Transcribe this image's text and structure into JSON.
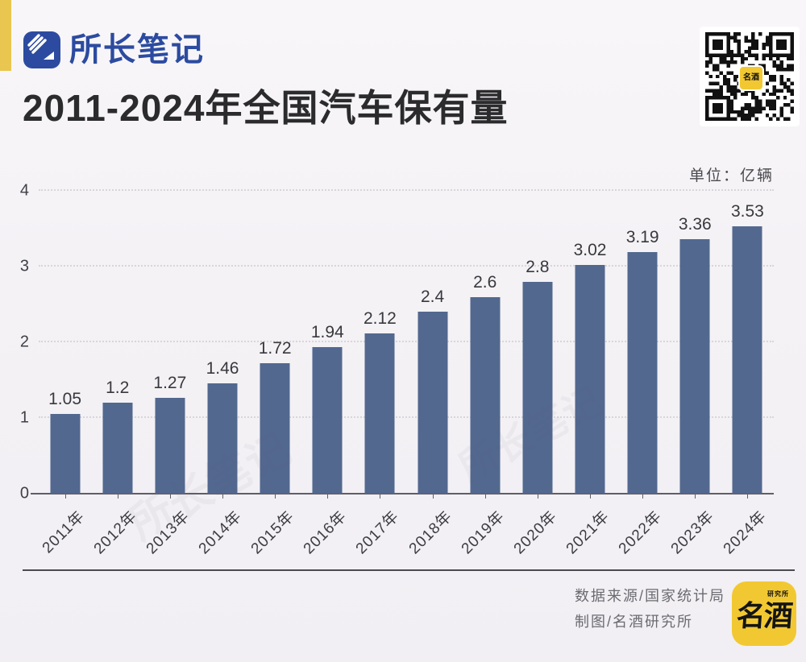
{
  "brand": {
    "name": "所长笔记"
  },
  "header": {
    "title": "2011-2024年全国汽车保有量"
  },
  "chart": {
    "unit_label": "单位：亿辆"
  },
  "chart_data": {
    "type": "bar",
    "title": "2011-2024年全国汽车保有量",
    "categories": [
      "2011年",
      "2012年",
      "2013年",
      "2014年",
      "2015年",
      "2016年",
      "2017年",
      "2018年",
      "2019年",
      "2020年",
      "2021年",
      "2022年",
      "2023年",
      "2024年"
    ],
    "values": [
      1.05,
      1.2,
      1.27,
      1.46,
      1.72,
      1.94,
      2.12,
      2.4,
      2.6,
      2.8,
      3.02,
      3.19,
      3.36,
      3.53
    ],
    "unit": "亿辆",
    "xlabel": "",
    "ylabel": "",
    "ylim": [
      0,
      4
    ],
    "yticks": [
      0,
      1,
      2,
      3,
      4
    ],
    "grid": "horizontal-dotted",
    "legend": "none",
    "bar_color": "#52688F"
  },
  "footer": {
    "source": "数据来源/国家统计局",
    "credit": "制图/名酒研究所",
    "logo_main": "名酒",
    "logo_sub": "研究所"
  },
  "watermark": {
    "text": "所长笔记"
  },
  "colors": {
    "accent_yellow": "#E9C64F",
    "brand_blue": "#2C4BA0",
    "bar": "#52688F",
    "background": "#F4F2F5",
    "footer_logo_yellow": "#F2C832"
  }
}
